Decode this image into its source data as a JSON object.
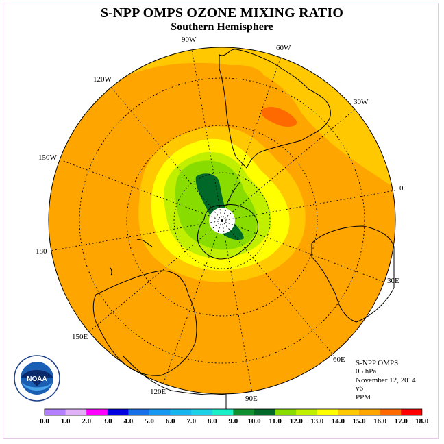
{
  "title": "S-NPP OMPS OZONE MIXING RATIO",
  "subtitle": "Southern Hemisphere",
  "longitude_labels": [
    "90W",
    "60W",
    "120W",
    "30W",
    "150W",
    "0",
    "180",
    "30E",
    "150E",
    "60E",
    "120E",
    "90E"
  ],
  "info": {
    "instrument": "S-NPP OMPS",
    "pressure": "05 hPa",
    "date": "November 12, 2014",
    "version": "v6",
    "units": "PPM"
  },
  "logo_text": "NOAA",
  "colorbar": {
    "ticks": [
      "0.0",
      "1.0",
      "2.0",
      "3.0",
      "4.0",
      "5.0",
      "6.0",
      "7.0",
      "8.0",
      "9.0",
      "10.0",
      "11.0",
      "12.0",
      "13.0",
      "14.0",
      "15.0",
      "16.0",
      "17.0",
      "18.0"
    ],
    "colors": [
      "#b380ff",
      "#e0b0f8",
      "#ff00ff",
      "#0000e0",
      "#1870e8",
      "#1898f0",
      "#18b4f0",
      "#20d0e8",
      "#18f0c8",
      "#109030",
      "#006828",
      "#88dc00",
      "#c0f000",
      "#ffff00",
      "#ffc800",
      "#ffa500",
      "#ff6a00",
      "#ff0000",
      "#8b5a3c"
    ]
  },
  "colors": {
    "background_ozone": "#ffa500",
    "pole_hole": "#ffffff"
  }
}
